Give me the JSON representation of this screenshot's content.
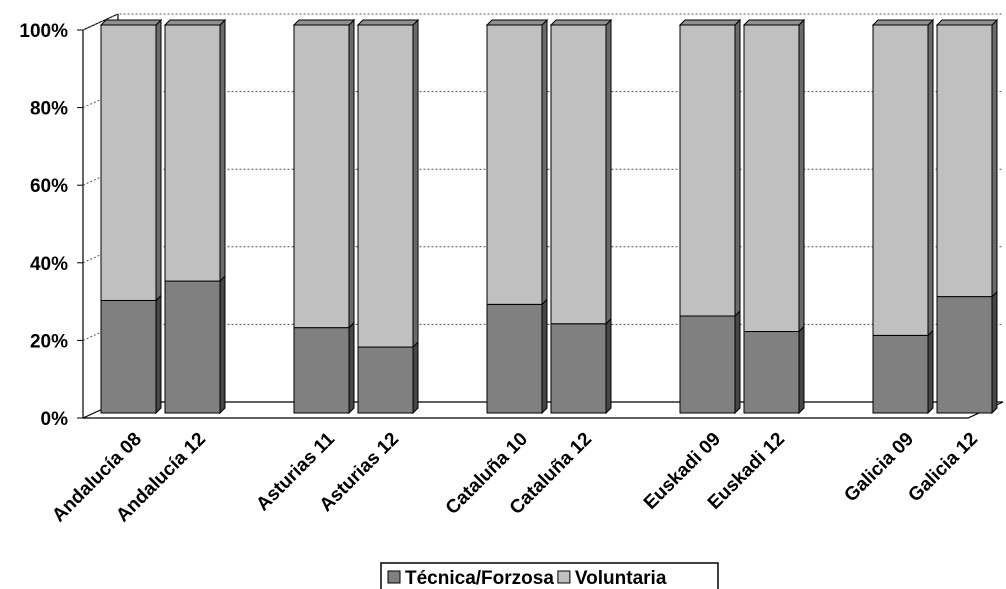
{
  "chart_data": {
    "type": "bar",
    "stacked": true,
    "percent_stacked": true,
    "three_d": true,
    "categories": [
      "Andalucía 08",
      "Andalucía 12",
      "Asturias 11",
      "Asturias 12",
      "Cataluña 10",
      "Cataluña 12",
      "Euskadi 09",
      "Euskadi 12",
      "Galicia 09",
      "Galicia 12"
    ],
    "groups": [
      [
        0,
        1
      ],
      [
        2,
        3
      ],
      [
        4,
        5
      ],
      [
        6,
        7
      ],
      [
        8,
        9
      ]
    ],
    "series": [
      {
        "name": "Técnica/Forzosa",
        "values": [
          29,
          34,
          22,
          17,
          28,
          23,
          25,
          21,
          20,
          30
        ],
        "color": "#808080"
      },
      {
        "name": "Voluntaria",
        "values": [
          71,
          66,
          78,
          83,
          72,
          77,
          75,
          79,
          80,
          70
        ],
        "color": "#c0c0c0"
      }
    ],
    "y_ticks": [
      "0%",
      "20%",
      "40%",
      "60%",
      "80%",
      "100%"
    ],
    "ylim": [
      0,
      100
    ],
    "grid": true,
    "legend": "bottom",
    "title": "",
    "xlabel": "",
    "ylabel": ""
  }
}
